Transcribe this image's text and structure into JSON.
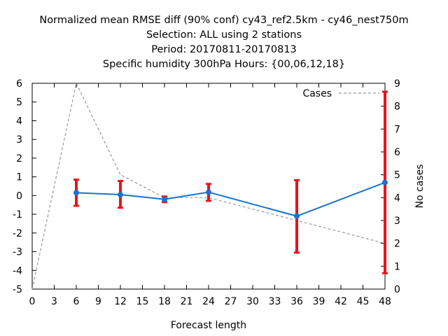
{
  "chart_data": {
    "type": "line",
    "title_lines": [
      "Normalized mean RMSE diff (90% conf) cy43_ref2.5km - cy46_nest750m",
      "Selection: ALL using     2 stations",
      "Period: 20170811-20170813",
      "Specific humidity 300hPa   Hours: {00,06,12,18}"
    ],
    "xlabel": "Forecast length",
    "ylabel": "",
    "y2label": "No cases",
    "xlim": [
      0,
      48
    ],
    "ylim": [
      -5,
      6
    ],
    "y2lim": [
      0,
      9
    ],
    "xticks": [
      0,
      3,
      6,
      9,
      12,
      15,
      18,
      21,
      24,
      27,
      30,
      33,
      36,
      39,
      42,
      45,
      48
    ],
    "yticks": [
      -5,
      -4,
      -3,
      -2,
      -1,
      0,
      1,
      2,
      3,
      4,
      5,
      6
    ],
    "y2ticks": [
      0,
      1,
      2,
      3,
      4,
      5,
      6,
      7,
      8,
      9
    ],
    "grid": false,
    "legend": "top-right",
    "series": [
      {
        "color": "#1874cd",
        "x": [
          6,
          12,
          18,
          24,
          36,
          48
        ],
        "y": [
          0.15,
          0.05,
          -0.2,
          0.18,
          -1.1,
          0.7
        ],
        "err_low": [
          -0.55,
          -0.65,
          -0.35,
          -0.28,
          -3.05,
          -4.15
        ],
        "err_high": [
          0.85,
          0.78,
          -0.05,
          0.62,
          0.82,
          5.55
        ],
        "err_color": "#e8141b"
      },
      {
        "name": "Cases",
        "axis": "y2",
        "color": "#999999",
        "dashed": true,
        "x": [
          0,
          6,
          12,
          18,
          24,
          36,
          48
        ],
        "y": [
          0,
          9,
          5,
          4,
          4,
          3,
          2
        ]
      }
    ]
  }
}
